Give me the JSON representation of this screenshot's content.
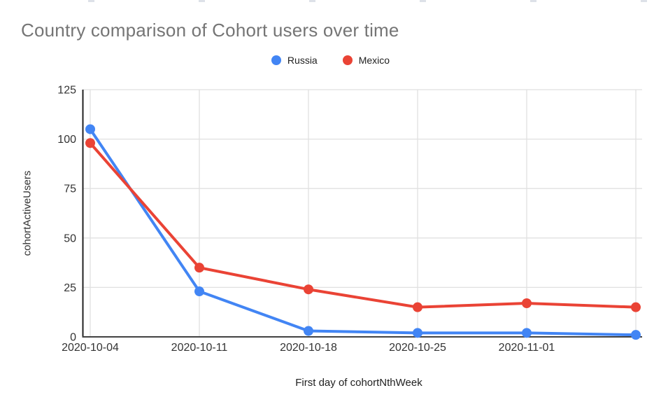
{
  "chart_data": {
    "type": "line",
    "title": "Country comparison of Cohort users over time",
    "xlabel": "First day of cohortNthWeek",
    "ylabel": "cohortActiveUsers",
    "categories": [
      "2020-10-04",
      "2020-10-11",
      "2020-10-18",
      "2020-10-25",
      "2020-11-01",
      ""
    ],
    "series": [
      {
        "name": "Russia",
        "color": "#4285F4",
        "values": [
          105,
          23,
          3,
          2,
          2,
          1
        ]
      },
      {
        "name": "Mexico",
        "color": "#EA4335",
        "values": [
          98,
          35,
          24,
          15,
          17,
          15
        ]
      }
    ],
    "ylim": [
      0,
      125
    ],
    "yticks": [
      0,
      25,
      50,
      75,
      100,
      125
    ],
    "grid": true,
    "legend_position": "top"
  }
}
